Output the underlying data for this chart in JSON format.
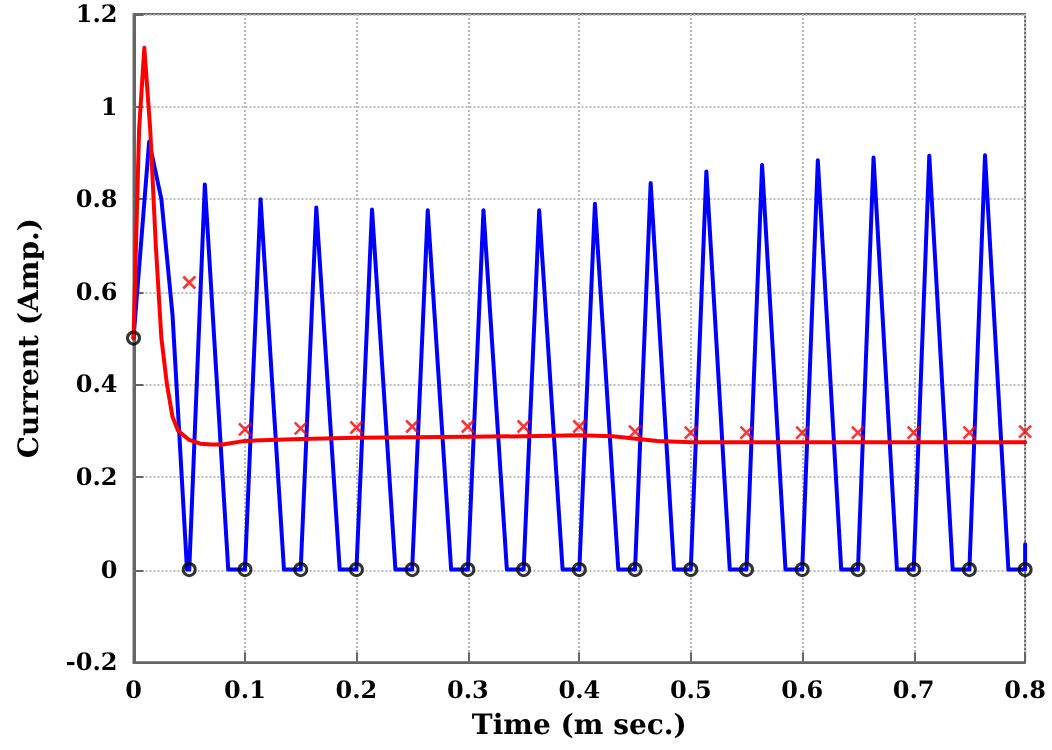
{
  "chart_data": {
    "type": "line",
    "xlabel": "Time (m sec.)",
    "ylabel": "Current (Amp.)",
    "xlim": [
      0,
      0.8
    ],
    "xticks": [
      0,
      0.1,
      0.2,
      0.3,
      0.4,
      0.5,
      0.6,
      0.7,
      0.8
    ],
    "ylim": [
      -0.2,
      1.2
    ],
    "yticks": [
      -0.2,
      0,
      0.2,
      0.4,
      0.6,
      0.8,
      1,
      1.2
    ],
    "grid": true,
    "line_style": "solid",
    "series": [
      {
        "color": "#0000ff",
        "marker": "none",
        "x": [
          0,
          0.014,
          0.025,
          0.035,
          0.048,
          0.05,
          0.064,
          0.085,
          0.1,
          0.114,
          0.135,
          0.15,
          0.164,
          0.185,
          0.2,
          0.214,
          0.235,
          0.25,
          0.264,
          0.285,
          0.3,
          0.314,
          0.335,
          0.35,
          0.364,
          0.385,
          0.4,
          0.414,
          0.435,
          0.45,
          0.464,
          0.485,
          0.5,
          0.514,
          0.535,
          0.55,
          0.564,
          0.585,
          0.6,
          0.614,
          0.635,
          0.65,
          0.664,
          0.685,
          0.7,
          0.714,
          0.735,
          0.75,
          0.764,
          0.785,
          0.8,
          0.8
        ],
        "values": [
          0.5,
          0.924,
          0.8,
          0.55,
          0,
          0,
          0.832,
          0,
          0,
          0.8,
          0,
          0,
          0.782,
          0,
          0,
          0.778,
          0,
          0,
          0.776,
          0,
          0,
          0.776,
          0,
          0,
          0.776,
          0,
          0,
          0.79,
          0,
          0,
          0.835,
          0,
          0,
          0.86,
          0,
          0,
          0.874,
          0,
          0,
          0.884,
          0,
          0,
          0.89,
          0,
          0,
          0.894,
          0,
          0,
          0.895,
          0,
          0,
          0.055
        ]
      },
      {
        "color": "#ff0000",
        "marker": "none",
        "x": [
          0,
          0.005,
          0.0097,
          0.015,
          0.02,
          0.025,
          0.03,
          0.035,
          0.04,
          0.05,
          0.06,
          0.07,
          0.08,
          0.1,
          0.15,
          0.2,
          0.3,
          0.35,
          0.4,
          0.43,
          0.47,
          0.5,
          0.6,
          0.7,
          0.8
        ],
        "values": [
          0.5,
          0.95,
          1.127,
          0.95,
          0.7,
          0.5,
          0.4,
          0.33,
          0.3,
          0.28,
          0.272,
          0.27,
          0.27,
          0.278,
          0.282,
          0.285,
          0.287,
          0.288,
          0.29,
          0.288,
          0.278,
          0.275,
          0.275,
          0.275,
          0.275
        ]
      },
      {
        "type": "scatter",
        "color": "#ff0000",
        "marker": "cross",
        "x": [
          0.05,
          0.1,
          0.15,
          0.2,
          0.25,
          0.3,
          0.35,
          0.4,
          0.45,
          0.5,
          0.55,
          0.6,
          0.65,
          0.7,
          0.75,
          0.8
        ],
        "values": [
          0.62,
          0.303,
          0.305,
          0.307,
          0.309,
          0.309,
          0.309,
          0.309,
          0.298,
          0.296,
          0.296,
          0.296,
          0.296,
          0.296,
          0.296,
          0.298
        ]
      },
      {
        "type": "scatter",
        "color": "#000000",
        "marker": "circle",
        "x": [
          0,
          0.05,
          0.1,
          0.15,
          0.2,
          0.25,
          0.3,
          0.35,
          0.4,
          0.45,
          0.5,
          0.55,
          0.6,
          0.65,
          0.7,
          0.75,
          0.8
        ],
        "values": [
          0.5,
          0,
          0,
          0,
          0,
          0,
          0,
          0,
          0,
          0,
          0,
          0,
          0,
          0,
          0,
          0,
          0
        ]
      }
    ]
  }
}
